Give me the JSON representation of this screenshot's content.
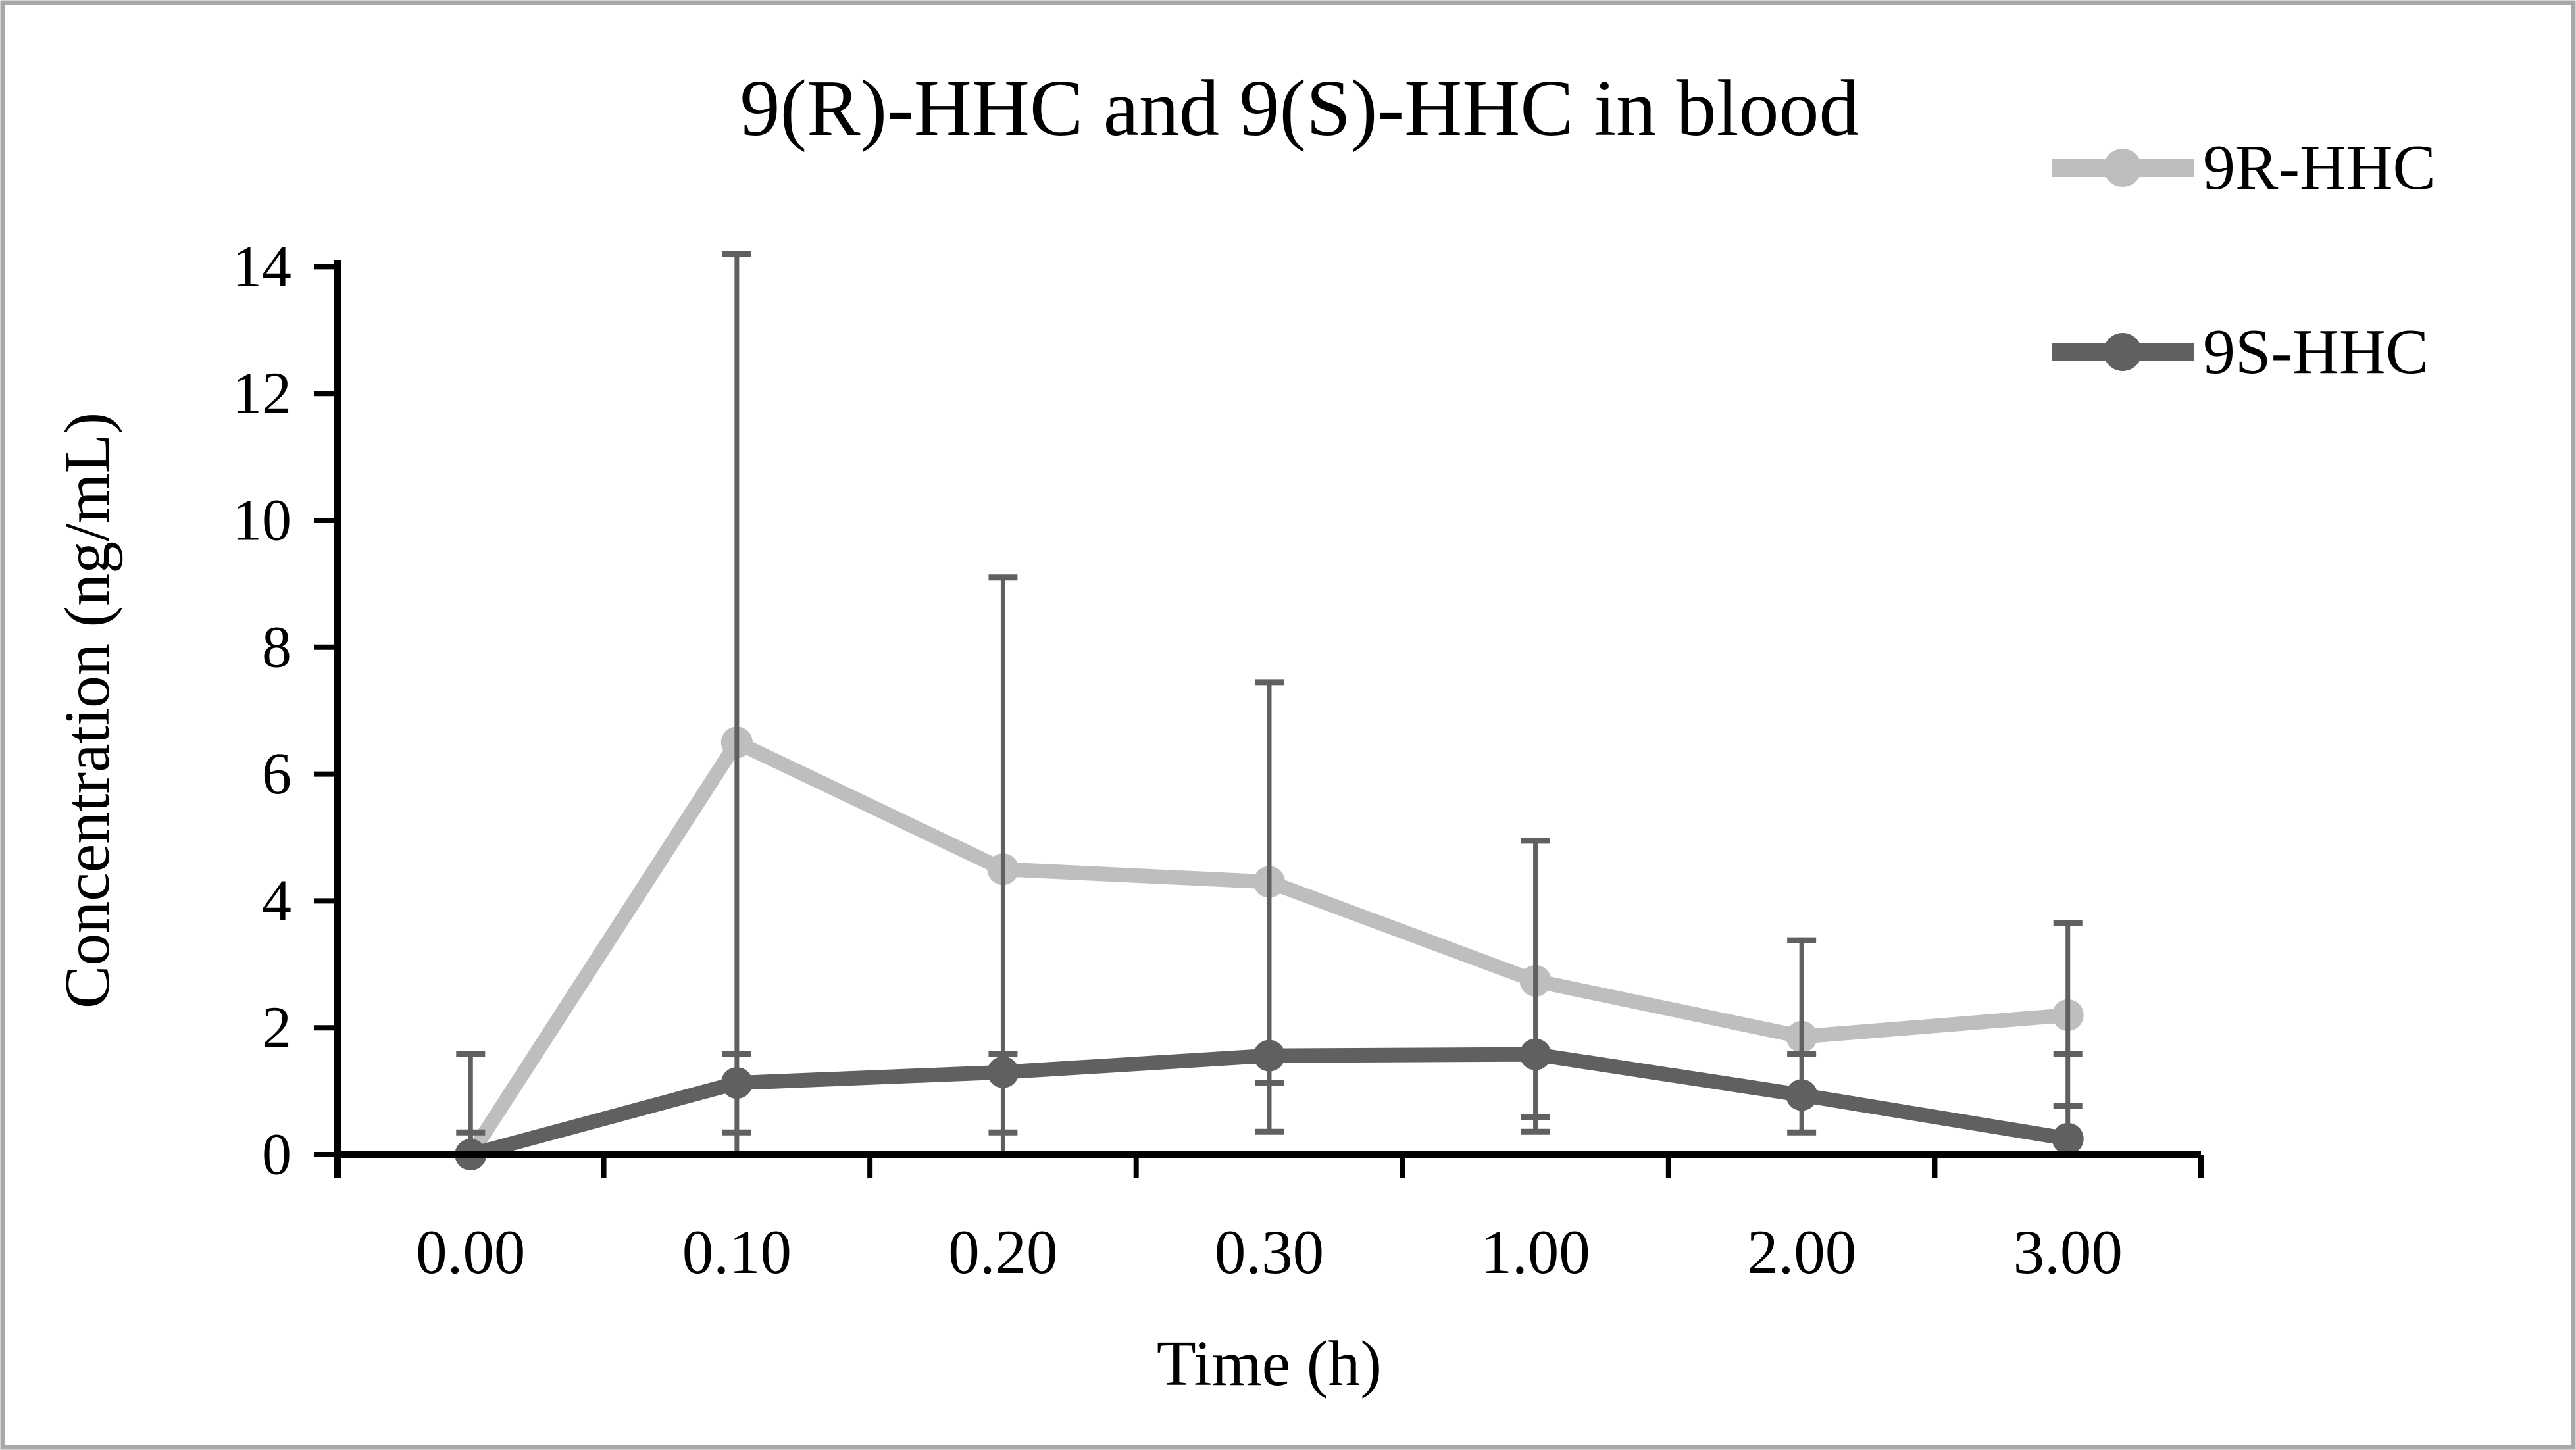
{
  "figure": {
    "title": "9(R)-HHC and 9(S)-HHC in blood",
    "x_axis_title": "Time (h)",
    "y_axis_title": "Concentration (ng/mL)",
    "background_color": "#ffffff",
    "border_color": "#a8a8a8",
    "text_color": "#000000",
    "axis_color": "#000000"
  },
  "legend": {
    "position": "top-right",
    "items": [
      {
        "label": "9R-HHC",
        "color": "#bebebe",
        "marker": "circle-on-line"
      },
      {
        "label": "9S-HHC",
        "color": "#606060",
        "marker": "circle-on-line"
      }
    ]
  },
  "chart_data": {
    "type": "line",
    "title": "9(R)-HHC and 9(S)-HHC in blood",
    "xlabel": "Time (h)",
    "ylabel": "Concentration (ng/mL)",
    "categories": [
      "0.00",
      "0.10",
      "0.20",
      "0.30",
      "1.00",
      "2.00",
      "3.00"
    ],
    "series": [
      {
        "name": "9R-HHC",
        "color": "#bebebe",
        "values": [
          0,
          6.5,
          4.5,
          4.3,
          2.74,
          1.86,
          2.2
        ]
      },
      {
        "name": "9S-HHC",
        "color": "#606060",
        "values": [
          0,
          1.13,
          1.3,
          1.56,
          1.58,
          0.94,
          0.25
        ]
      }
    ],
    "error_bars": {
      "color": "#606060",
      "per_category": [
        {
          "top": 1.59,
          "bottom": 0.05,
          "caps": [
            1.59,
            0.35
          ]
        },
        {
          "top": 14.2,
          "bottom": 0,
          "caps": [
            14.2,
            1.59,
            0.35
          ]
        },
        {
          "top": 9.1,
          "bottom": 0,
          "caps": [
            9.1,
            1.59,
            0.35
          ]
        },
        {
          "top": 7.45,
          "bottom": 0.36,
          "caps": [
            7.45,
            1.13,
            0.36
          ]
        },
        {
          "top": 4.95,
          "bottom": 0.36,
          "caps": [
            4.95,
            0.59,
            0.36
          ]
        },
        {
          "top": 3.38,
          "bottom": 0.35,
          "caps": [
            3.38,
            1.59,
            0.35
          ]
        },
        {
          "top": 3.65,
          "bottom": 0.2,
          "caps": [
            3.65,
            1.59,
            0.77
          ]
        }
      ]
    },
    "y_ticks": [
      0,
      2,
      4,
      6,
      8,
      10,
      12,
      14
    ],
    "y_tick_labels": [
      "0",
      "2",
      "4",
      "6",
      "8",
      "10",
      "12",
      "14"
    ],
    "ylim": [
      0,
      14.1
    ],
    "grid": false,
    "legend_position": "top-right"
  }
}
